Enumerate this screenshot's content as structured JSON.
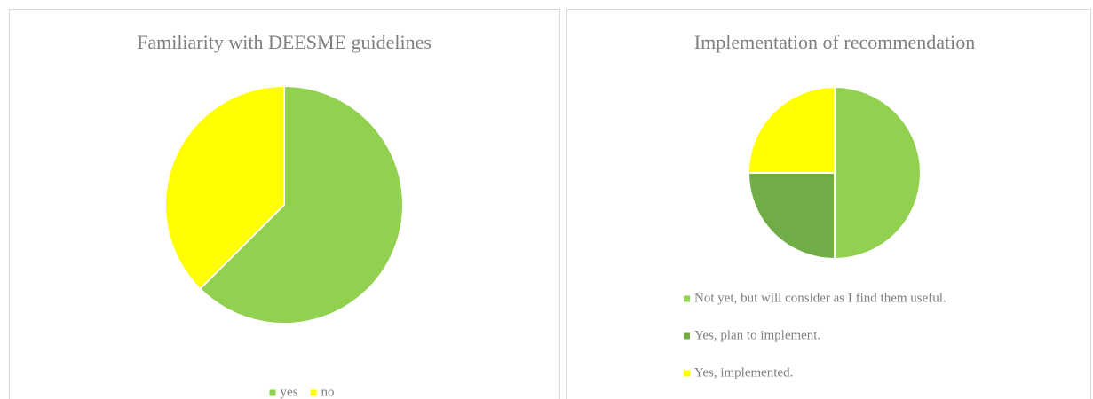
{
  "chart_data": [
    {
      "type": "pie",
      "title": "Familiarity with DEESME guidelines",
      "categories": [
        "yes",
        "no"
      ],
      "values": [
        62.5,
        37.5
      ],
      "colors": [
        "#92d050",
        "#ffff00"
      ],
      "legend": "bottom"
    },
    {
      "type": "pie",
      "title": "Implementation of recommendation",
      "categories": [
        "Not yet, but will consider as I find them useful.",
        "Yes, plan to implement.",
        "Yes, implemented."
      ],
      "values": [
        50,
        25,
        25
      ],
      "colors": [
        "#92d050",
        "#70ad47",
        "#ffff00"
      ],
      "legend": "bottom"
    }
  ]
}
